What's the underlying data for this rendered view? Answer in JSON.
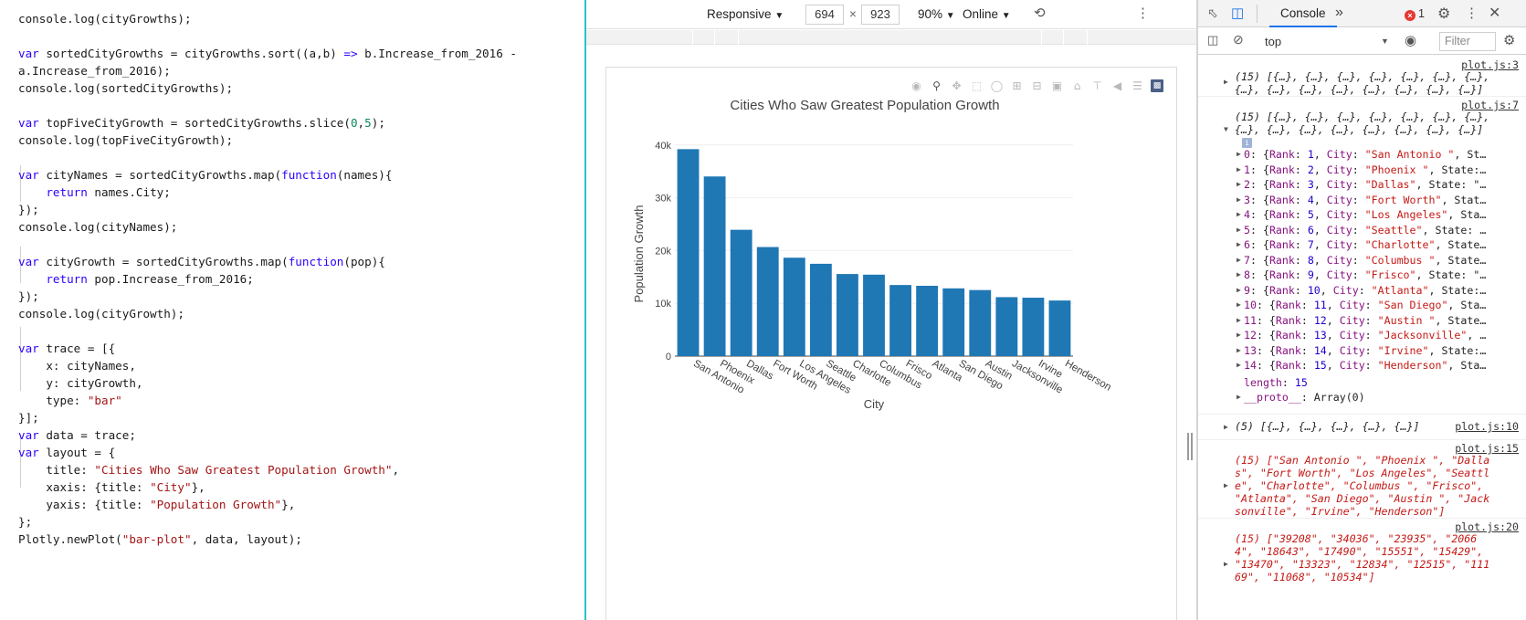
{
  "editor": {
    "lines": [
      "console.log(cityGrowths);",
      "",
      "var sortedCityGrowths = cityGrowths.sort((a,b) => b.Increase_from_2016 -",
      "a.Increase_from_2016);",
      "console.log(sortedCityGrowths);",
      "",
      "var topFiveCityGrowth = sortedCityGrowths.slice(0,5);",
      "console.log(topFiveCityGrowth);",
      "",
      "var cityNames = sortedCityGrowths.map(function(names){",
      "    return names.City;",
      "});",
      "console.log(cityNames);",
      "",
      "var cityGrowth = sortedCityGrowths.map(function(pop){",
      "    return pop.Increase_from_2016;",
      "});",
      "console.log(cityGrowth);",
      "",
      "var trace = [{",
      "    x: cityNames,",
      "    y: cityGrowth,",
      "    type: \"bar\"",
      "}];",
      "var data = trace;",
      "var layout = {",
      "    title: \"Cities Who Saw Greatest Population Growth\",",
      "    xaxis: {title: \"City\"},",
      "    yaxis: {title: \"Population Growth\"},",
      "};",
      "Plotly.newPlot(\"bar-plot\", data, layout);"
    ]
  },
  "device_toolbar": {
    "mode": "Responsive",
    "width": "694",
    "times": "×",
    "height": "923",
    "zoom": "90%",
    "network": "Online"
  },
  "chart_data": {
    "type": "bar",
    "title": "Cities Who Saw Greatest Population Growth",
    "xlabel": "City",
    "ylabel": "Population Growth",
    "categories": [
      "San Antonio",
      "Phoenix",
      "Dallas",
      "Fort Worth",
      "Los Angeles",
      "Seattle",
      "Charlotte",
      "Columbus",
      "Frisco",
      "Atlanta",
      "San Diego",
      "Austin",
      "Jacksonville",
      "Irvine",
      "Henderson"
    ],
    "values": [
      39208,
      34036,
      23935,
      20664,
      18643,
      17490,
      15551,
      15429,
      13470,
      13323,
      12834,
      12515,
      11169,
      11068,
      10534
    ],
    "ylim": [
      0,
      41000
    ],
    "yticks": [
      0,
      10000,
      20000,
      30000,
      40000
    ],
    "ytick_labels": [
      "0",
      "10k",
      "20k",
      "30k",
      "40k"
    ],
    "bar_color": "#1f77b4",
    "grid": true
  },
  "devtools": {
    "tab": "Console",
    "more_tabs": "»",
    "error_count": "1",
    "context": "top",
    "filter_placeholder": "Filter",
    "messages": {
      "m1": {
        "source": "plot.js:3",
        "line1": "(15) [{…}, {…}, {…}, {…}, {…}, {…}, {…},",
        "line2": "{…}, {…}, {…}, {…}, {…}, {…}, {…}, {…}]"
      },
      "m2": {
        "source": "plot.js:7",
        "line1": "(15) [{…}, {…}, {…}, {…}, {…}, {…}, {…},",
        "line2": "{…}, {…}, {…}, {…}, {…}, {…}, {…}, {…}]",
        "rows": [
          {
            "idx": "0",
            "rank": "1",
            "city": "\"San Antonio \"",
            "tail": ", St…"
          },
          {
            "idx": "1",
            "rank": "2",
            "city": "\"Phoenix \"",
            "tail": ", State:…"
          },
          {
            "idx": "2",
            "rank": "3",
            "city": "\"Dallas\"",
            "tail": ", State: \"…"
          },
          {
            "idx": "3",
            "rank": "4",
            "city": "\"Fort Worth\"",
            "tail": ", Stat…"
          },
          {
            "idx": "4",
            "rank": "5",
            "city": "\"Los Angeles\"",
            "tail": ", Sta…"
          },
          {
            "idx": "5",
            "rank": "6",
            "city": "\"Seattle\"",
            "tail": ", State: …"
          },
          {
            "idx": "6",
            "rank": "7",
            "city": "\"Charlotte\"",
            "tail": ", State…"
          },
          {
            "idx": "7",
            "rank": "8",
            "city": "\"Columbus \"",
            "tail": ", State…"
          },
          {
            "idx": "8",
            "rank": "9",
            "city": "\"Frisco\"",
            "tail": ", State: \"…"
          },
          {
            "idx": "9",
            "rank": "10",
            "city": "\"Atlanta\"",
            "tail": ", State:…"
          },
          {
            "idx": "10",
            "rank": "11",
            "city": "\"San Diego\"",
            "tail": ", Sta…"
          },
          {
            "idx": "11",
            "rank": "12",
            "city": "\"Austin \"",
            "tail": ", State…"
          },
          {
            "idx": "12",
            "rank": "13",
            "city": "\"Jacksonville\"",
            "tail": ", …"
          },
          {
            "idx": "13",
            "rank": "14",
            "city": "\"Irvine\"",
            "tail": ", State:…"
          },
          {
            "idx": "14",
            "rank": "15",
            "city": "\"Henderson\"",
            "tail": ", Sta…"
          }
        ],
        "length_label": "length",
        "length_value": "15",
        "proto_label": "__proto__",
        "proto_value": "Array(0)"
      },
      "m3": {
        "source": "plot.js:10",
        "line1": "(5) [{…}, {…}, {…}, {…}, {…}]"
      },
      "m4": {
        "source": "plot.js:15",
        "lines": [
          "(15) [\"San Antonio \", \"Phoenix \", \"Dalla",
          "s\", \"Fort Worth\", \"Los Angeles\", \"Seattl",
          "e\", \"Charlotte\", \"Columbus \", \"Frisco\",",
          "\"Atlanta\", \"San Diego\", \"Austin \", \"Jack",
          "sonville\", \"Irvine\", \"Henderson\"]"
        ]
      },
      "m5": {
        "source": "plot.js:20",
        "lines": [
          "(15) [\"39208\", \"34036\", \"23935\", \"2066",
          "4\", \"18643\", \"17490\", \"15551\", \"15429\",",
          "\"13470\", \"13323\", \"12834\", \"12515\", \"111",
          "69\", \"11068\", \"10534\"]"
        ]
      }
    }
  }
}
